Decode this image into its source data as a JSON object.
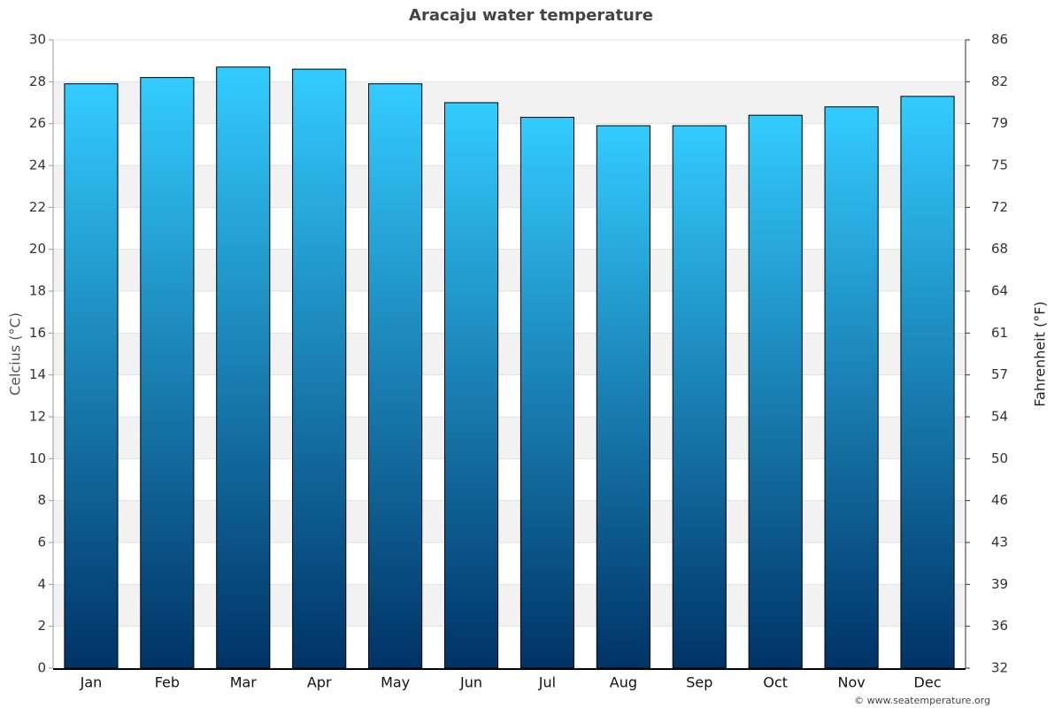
{
  "chart_data": {
    "type": "bar",
    "title": "Aracaju water temperature",
    "categories": [
      "Jan",
      "Feb",
      "Mar",
      "Apr",
      "May",
      "Jun",
      "Jul",
      "Aug",
      "Sep",
      "Oct",
      "Nov",
      "Dec"
    ],
    "values": [
      27.9,
      28.2,
      28.7,
      28.6,
      27.9,
      27.0,
      26.3,
      25.9,
      25.9,
      26.4,
      26.8,
      27.3
    ],
    "color": [
      "#33ccff",
      "#003366"
    ],
    "ylabel": "Celcius (°C)",
    "y2label": "Fahrenheit (°F)",
    "ylim": [
      0,
      30
    ],
    "yticks": [
      0,
      2,
      4,
      6,
      8,
      10,
      12,
      14,
      16,
      18,
      20,
      22,
      24,
      26,
      28,
      30
    ],
    "y2lim": [
      32,
      86
    ],
    "y2ticks": [
      32,
      {
        "value": 35.6,
        "label": "36"
      },
      {
        "value": 39.2,
        "label": "39"
      },
      {
        "value": 42.8,
        "label": "43"
      },
      {
        "value": 46.4,
        "label": "46"
      },
      50,
      {
        "value": 53.6,
        "label": "54"
      },
      {
        "value": 57.2,
        "label": "57"
      },
      {
        "value": 60.8,
        "label": "61"
      },
      {
        "value": 64.4,
        "label": "64"
      },
      68,
      {
        "value": 71.6,
        "label": "72"
      },
      {
        "value": 75.2,
        "label": "75"
      },
      {
        "value": 78.8,
        "label": "79"
      },
      {
        "value": 82.4,
        "label": "82"
      },
      86
    ],
    "grid": true,
    "credit": "© www.seatemperature.org"
  }
}
